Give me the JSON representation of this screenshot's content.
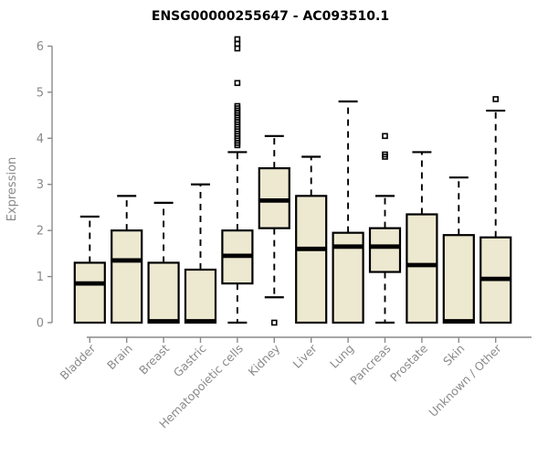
{
  "chart_data": {
    "type": "boxplot",
    "title": "ENSG00000255647 - AC093510.1",
    "xlabel": "",
    "ylabel": "Expression",
    "ylim": [
      0,
      6
    ],
    "yticks": [
      0,
      1,
      2,
      3,
      4,
      5,
      6
    ],
    "grid": "off",
    "legend": "none",
    "categories": [
      "Bladder",
      "Brain",
      "Breast",
      "Gastric",
      "Hematopoietic cells",
      "Kidney",
      "Liver",
      "Lung",
      "Pancreas",
      "Prostate",
      "Skin",
      "Unknown / Other"
    ],
    "series": [
      {
        "category": "Bladder",
        "whisker_low": 0,
        "q1": 0,
        "median": 0.85,
        "q3": 1.3,
        "whisker_high": 2.3,
        "outliers": []
      },
      {
        "category": "Brain",
        "whisker_low": 0,
        "q1": 0,
        "median": 1.35,
        "q3": 2.0,
        "whisker_high": 2.75,
        "outliers": []
      },
      {
        "category": "Breast",
        "whisker_low": 0,
        "q1": 0,
        "median": 0.03,
        "q3": 1.3,
        "whisker_high": 2.6,
        "outliers": []
      },
      {
        "category": "Gastric",
        "whisker_low": 0,
        "q1": 0,
        "median": 0.03,
        "q3": 1.15,
        "whisker_high": 3.0,
        "outliers": []
      },
      {
        "category": "Hematopoietic cells",
        "whisker_low": 0,
        "q1": 0.85,
        "median": 1.45,
        "q3": 2.0,
        "whisker_high": 3.7,
        "outliers": [
          3.85,
          3.9,
          3.95,
          4.0,
          4.05,
          4.1,
          4.15,
          4.2,
          4.25,
          4.3,
          4.35,
          4.4,
          4.45,
          4.5,
          4.55,
          4.6,
          4.65,
          4.7,
          5.2,
          5.95,
          6.05,
          6.15
        ]
      },
      {
        "category": "Kidney",
        "whisker_low": 0.55,
        "q1": 2.05,
        "median": 2.65,
        "q3": 3.35,
        "whisker_high": 4.05,
        "outliers": [
          0.0
        ]
      },
      {
        "category": "Liver",
        "whisker_low": 0,
        "q1": 0,
        "median": 1.6,
        "q3": 2.75,
        "whisker_high": 3.6,
        "outliers": []
      },
      {
        "category": "Lung",
        "whisker_low": 0,
        "q1": 0,
        "median": 1.65,
        "q3": 1.95,
        "whisker_high": 4.8,
        "outliers": []
      },
      {
        "category": "Pancreas",
        "whisker_low": 0,
        "q1": 1.1,
        "median": 1.65,
        "q3": 2.05,
        "whisker_high": 2.75,
        "outliers": [
          3.6,
          3.65,
          4.05
        ]
      },
      {
        "category": "Prostate",
        "whisker_low": 0,
        "q1": 0,
        "median": 1.25,
        "q3": 2.35,
        "whisker_high": 3.7,
        "outliers": []
      },
      {
        "category": "Skin",
        "whisker_low": 0,
        "q1": 0,
        "median": 0.03,
        "q3": 1.9,
        "whisker_high": 3.15,
        "outliers": []
      },
      {
        "category": "Unknown / Other",
        "whisker_low": 0,
        "q1": 0,
        "median": 0.95,
        "q3": 1.85,
        "whisker_high": 4.6,
        "outliers": [
          4.85
        ]
      }
    ],
    "colors": {
      "box_fill": "#EDE8D0",
      "box_stroke": "#000000",
      "median": "#000000",
      "whisker": "#000000",
      "outlier": "#000000",
      "axis": "#8A8A8A",
      "title": "#000000",
      "background": "#FFFFFF"
    }
  }
}
